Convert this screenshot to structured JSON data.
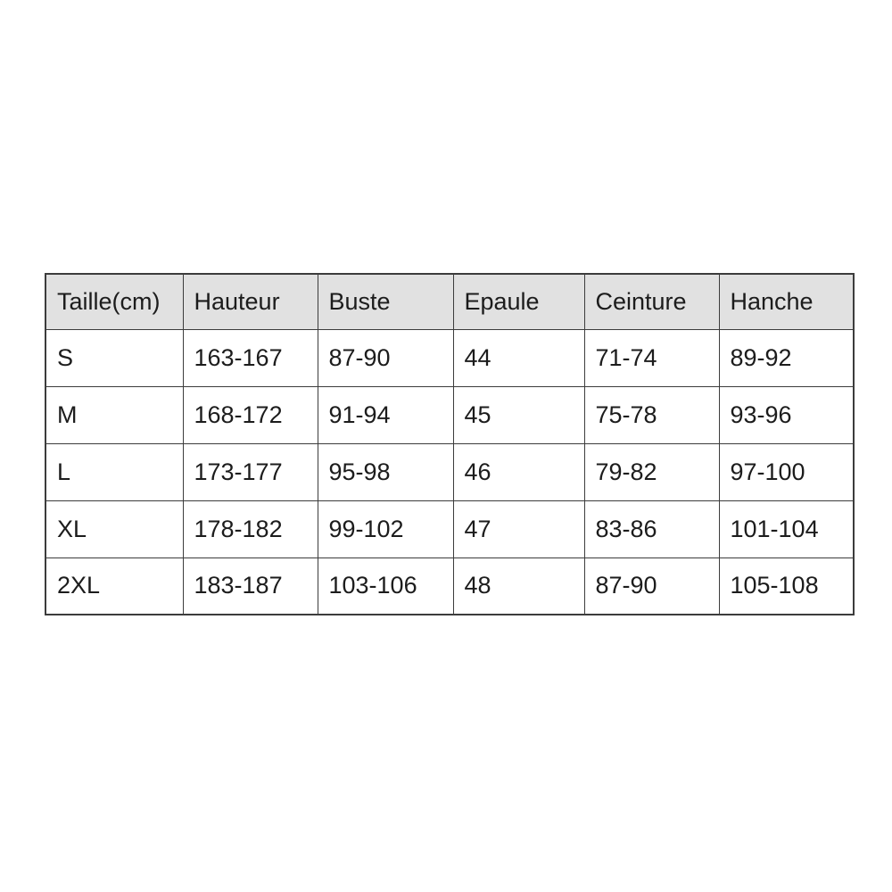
{
  "chart_data": {
    "type": "table",
    "title": "",
    "headers": [
      "Taille(cm)",
      "Hauteur",
      "Buste",
      "Epaule",
      "Ceinture",
      "Hanche"
    ],
    "rows": [
      [
        "S",
        "163-167",
        "87-90",
        "44",
        "71-74",
        "89-92"
      ],
      [
        "M",
        "168-172",
        "91-94",
        "45",
        "75-78",
        "93-96"
      ],
      [
        "L",
        "173-177",
        "95-98",
        "46",
        "79-82",
        "97-100"
      ],
      [
        "XL",
        "178-182",
        "99-102",
        "47",
        "83-86",
        "101-104"
      ],
      [
        "2XL",
        "183-187",
        "103-106",
        "48",
        "87-90",
        "105-108"
      ]
    ],
    "colors": {
      "header_bg": "#e1e1e1",
      "row_bg": "#ffffff",
      "border": "#3c3c3c",
      "text": "#1c1c1c"
    }
  }
}
